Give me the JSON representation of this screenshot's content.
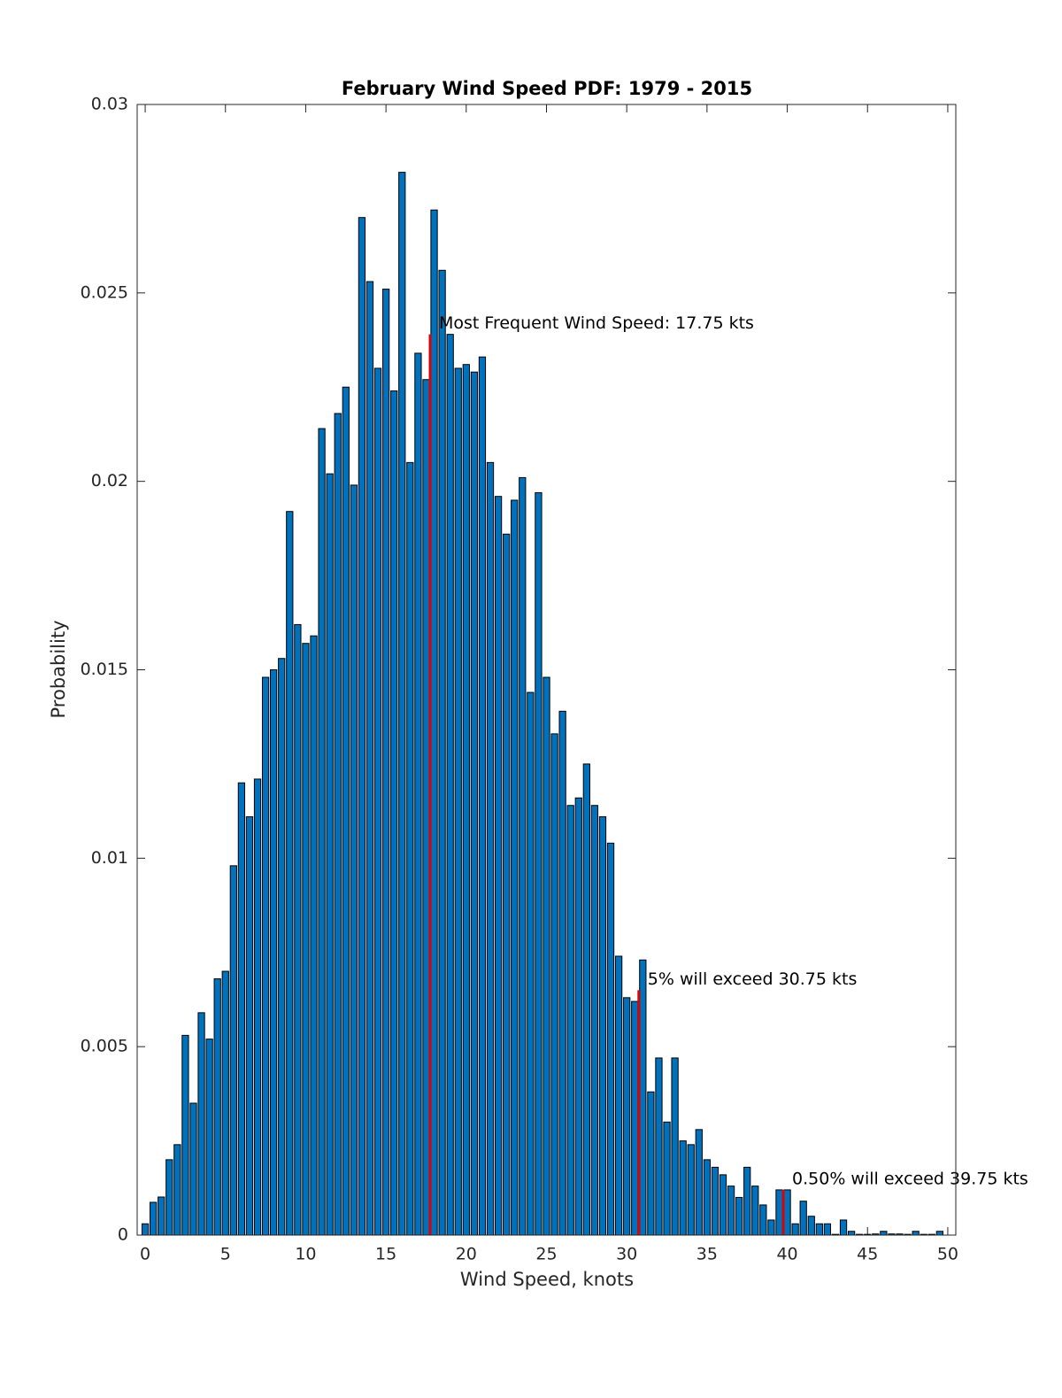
{
  "chart_data": {
    "type": "bar",
    "title": "February Wind Speed PDF: 1979 - 2015",
    "x_label": "Wind Speed, knots",
    "y_label": "Probability",
    "x": [
      0,
      0.5,
      1,
      1.5,
      2,
      2.5,
      3,
      3.5,
      4,
      4.5,
      5,
      5.5,
      6,
      6.5,
      7,
      7.5,
      8,
      8.5,
      9,
      9.5,
      10,
      10.5,
      11,
      11.5,
      12,
      12.5,
      13,
      13.5,
      14,
      14.5,
      15,
      15.5,
      16,
      16.5,
      17,
      17.5,
      18,
      18.5,
      19,
      19.5,
      20,
      20.5,
      21,
      21.5,
      22,
      22.5,
      23,
      23.5,
      24,
      24.5,
      25,
      25.5,
      26,
      26.5,
      27,
      27.5,
      28,
      28.5,
      29,
      29.5,
      30,
      30.5,
      31,
      31.5,
      32,
      32.5,
      33,
      33.5,
      34,
      34.5,
      35,
      35.5,
      36,
      36.5,
      37,
      37.5,
      38,
      38.5,
      39,
      39.5,
      40,
      40.5,
      41,
      41.5,
      42,
      42.5,
      43,
      43.5,
      44,
      44.5,
      45,
      45.5,
      46,
      46.5,
      47,
      47.5,
      48,
      48.5,
      49,
      49.5
    ],
    "values": [
      0.0003,
      0.00087,
      0.00101,
      0.002,
      0.0024,
      0.0053,
      0.0035,
      0.0059,
      0.0052,
      0.0068,
      0.007,
      0.0098,
      0.012,
      0.0111,
      0.0121,
      0.0148,
      0.015,
      0.0153,
      0.0192,
      0.0162,
      0.0157,
      0.0159,
      0.0214,
      0.0202,
      0.0218,
      0.0225,
      0.0199,
      0.027,
      0.0253,
      0.023,
      0.0251,
      0.0224,
      0.0282,
      0.0205,
      0.0234,
      0.0227,
      0.0272,
      0.0256,
      0.0239,
      0.023,
      0.0231,
      0.0229,
      0.0233,
      0.0205,
      0.0196,
      0.0186,
      0.0195,
      0.0201,
      0.0144,
      0.0197,
      0.0148,
      0.0133,
      0.0139,
      0.0114,
      0.0116,
      0.0125,
      0.0114,
      0.0111,
      0.0104,
      0.0074,
      0.0063,
      0.0062,
      0.0073,
      0.0038,
      0.0047,
      0.003,
      0.0047,
      0.0025,
      0.0024,
      0.0028,
      0.002,
      0.0018,
      0.0016,
      0.0013,
      0.001,
      0.0018,
      0.0013,
      0.0008,
      0.0004,
      0.0012,
      0.0012,
      0.0003,
      0.0009,
      0.0005,
      0.0003,
      0.0003,
      2e-05,
      0.0004,
      0.0001,
      2e-05,
      2e-05,
      3e-05,
      0.0001,
      3e-05,
      3e-05,
      2e-05,
      0.0001,
      2e-05,
      2e-05,
      0.0001
    ],
    "color": "#0072bd",
    "markers": [
      {
        "x": 17.75,
        "height": 0.0239,
        "label": "Most Frequent Wind Speed: 17.75 kts"
      },
      {
        "x": 30.75,
        "height": 0.0065,
        "label": "5% will exceed 30.75 kts"
      },
      {
        "x": 39.75,
        "height": 0.0012,
        "label": "0.50% will exceed 39.75 kts"
      }
    ],
    "marker_color": "#e00000",
    "xlim": [
      -0.5,
      50.5
    ],
    "xticks": [
      0,
      5,
      10,
      15,
      20,
      25,
      30,
      35,
      40,
      45,
      50
    ],
    "ylim": [
      0,
      0.03
    ],
    "yticks": [
      0,
      0.005,
      0.01,
      0.015,
      0.02,
      0.025,
      0.03
    ],
    "grid": false
  }
}
